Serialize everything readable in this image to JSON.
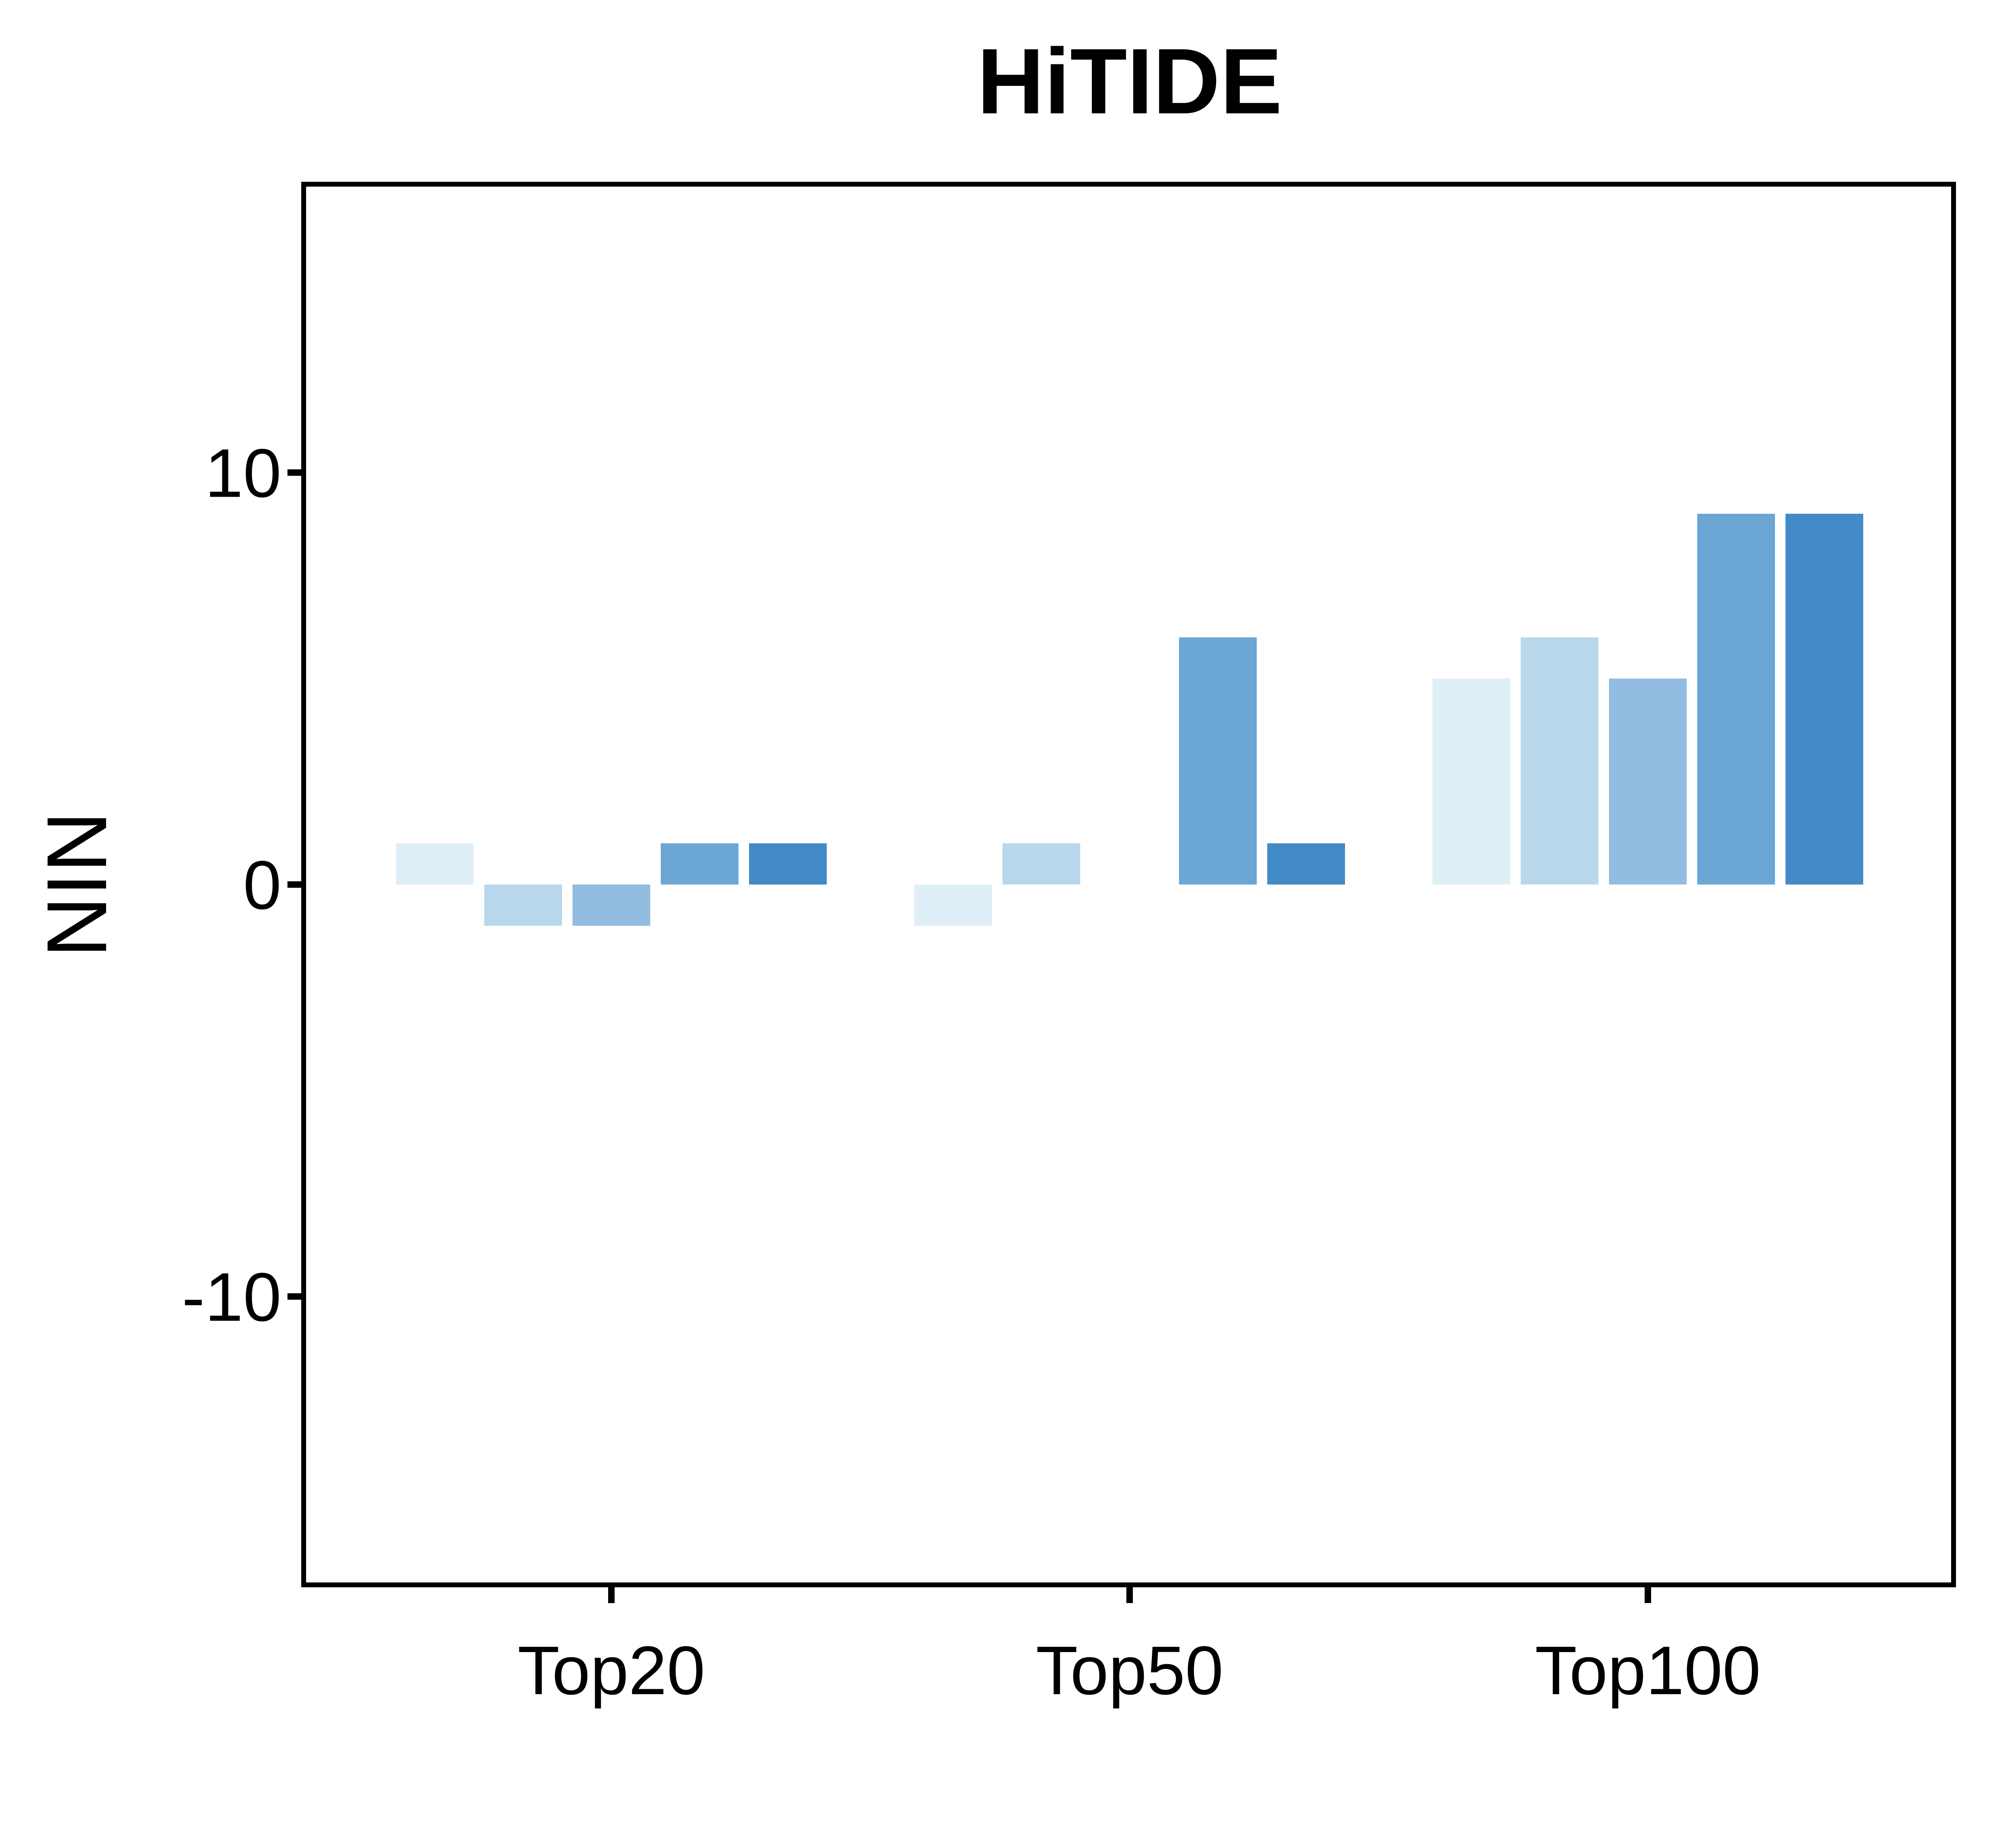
{
  "chart_data": {
    "type": "bar",
    "title": "HiTIDE",
    "xlabel": "",
    "ylabel": "NIN",
    "ylim": [
      -17,
      17
    ],
    "yticks": [
      -10,
      0,
      10
    ],
    "ytick_labels": [
      "-10",
      "0",
      "10"
    ],
    "grid": false,
    "legend": "none",
    "categories": [
      "Top20",
      "Top50",
      "Top100"
    ],
    "series": [
      {
        "color": "#deeff7",
        "values": [
          1,
          -1,
          5
        ]
      },
      {
        "color": "#b8d7eb",
        "values": [
          -1,
          1,
          6
        ]
      },
      {
        "color": "#93bde0",
        "values": [
          -1,
          0,
          5
        ]
      },
      {
        "color": "#6ba6d4",
        "values": [
          1,
          6,
          9
        ]
      },
      {
        "color": "#428bc7",
        "values": [
          1,
          1,
          9
        ]
      }
    ]
  }
}
